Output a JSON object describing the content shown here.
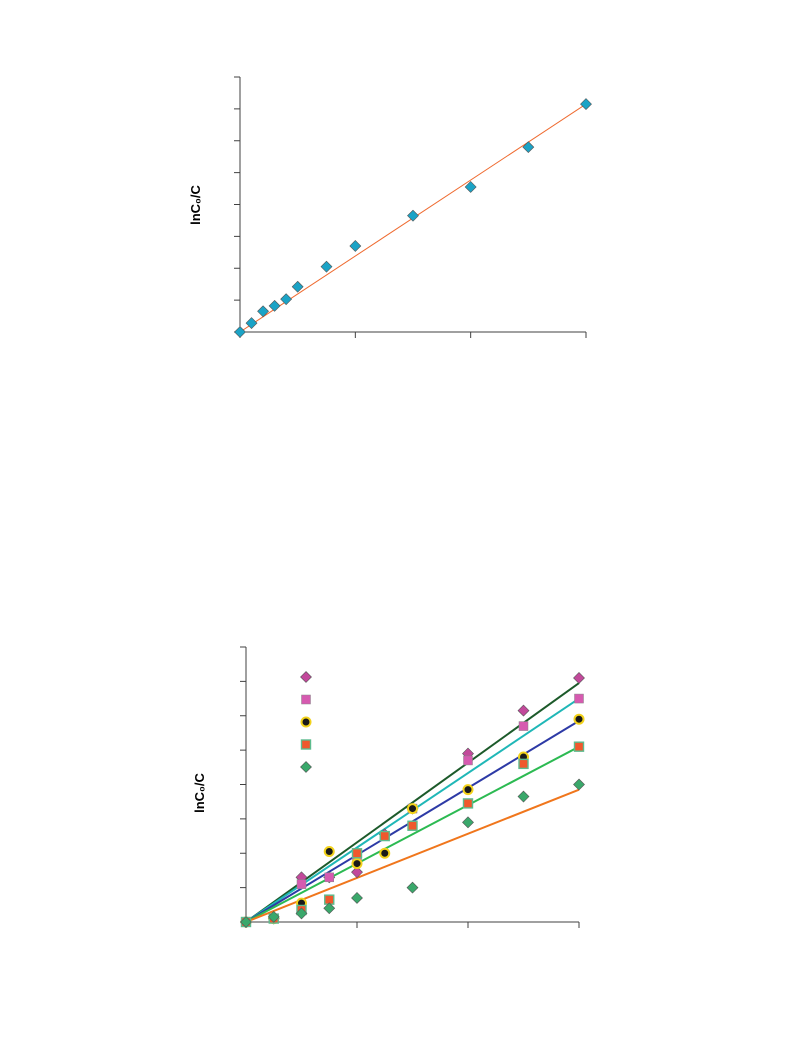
{
  "chart_data": [
    {
      "type": "scatter",
      "ylabel": "lnC₀/C",
      "xlim": [
        0,
        60
      ],
      "ylim": [
        0,
        8
      ],
      "x_ticks": [
        0,
        20,
        40,
        60
      ],
      "y_ticks": [
        0,
        1,
        2,
        3,
        4,
        5,
        6,
        7,
        8
      ],
      "series": [
        {
          "marker": "diamond",
          "color": "#1ba3c6",
          "points": [
            [
              0,
              0
            ],
            [
              2,
              0.28
            ],
            [
              4,
              0.65
            ],
            [
              6,
              0.82
            ],
            [
              8,
              1.03
            ],
            [
              10,
              1.42
            ],
            [
              15,
              2.05
            ],
            [
              20,
              2.7
            ],
            [
              30,
              3.65
            ],
            [
              40,
              4.55
            ],
            [
              50,
              5.8
            ],
            [
              60,
              7.15
            ]
          ]
        }
      ],
      "fit_lines": [
        {
          "color": "#ef6a2f",
          "from": [
            0,
            0
          ],
          "to": [
            60,
            7.15
          ]
        }
      ]
    },
    {
      "type": "scatter",
      "ylabel": "lnC₀/C",
      "xlim": [
        0,
        60
      ],
      "ylim": [
        0,
        8
      ],
      "x_ticks": [
        0,
        20,
        40,
        60
      ],
      "y_ticks": [
        0,
        1,
        2,
        3,
        4,
        5,
        6,
        7,
        8
      ],
      "legend_markers": [
        {
          "marker": "diamond",
          "color": "#c2499b"
        },
        {
          "marker": "square",
          "color": "#d65ab0"
        },
        {
          "marker": "circle",
          "color": "#1a1a1a",
          "stroke": "#f2d21b"
        },
        {
          "marker": "square",
          "color": "#f0582d",
          "stroke": "#5dbb8e"
        },
        {
          "marker": "diamond",
          "color": "#3aa86b"
        }
      ],
      "series": [
        {
          "marker": "diamond",
          "color": "#c2499b",
          "points": [
            [
              0,
              0
            ],
            [
              5,
              0.1
            ],
            [
              10,
              1.3
            ],
            [
              15,
              1.3
            ],
            [
              20,
              1.45
            ],
            [
              25,
              2.55
            ],
            [
              30,
              3.3
            ],
            [
              40,
              4.9
            ],
            [
              50,
              6.15
            ],
            [
              60,
              7.1
            ]
          ]
        },
        {
          "marker": "square",
          "color": "#d65ab0",
          "points": [
            [
              0,
              0
            ],
            [
              5,
              0.1
            ],
            [
              10,
              1.1
            ],
            [
              15,
              1.3
            ],
            [
              20,
              1.9
            ],
            [
              25,
              2.5
            ],
            [
              30,
              3.3
            ],
            [
              40,
              4.7
            ],
            [
              50,
              5.7
            ],
            [
              60,
              6.5
            ]
          ]
        },
        {
          "marker": "circle",
          "color": "#1a1a1a",
          "stroke": "#f2d21b",
          "points": [
            [
              0,
              0
            ],
            [
              5,
              0.1
            ],
            [
              10,
              0.55
            ],
            [
              15,
              2.05
            ],
            [
              20,
              1.7
            ],
            [
              25,
              2.0
            ],
            [
              30,
              3.3
            ],
            [
              40,
              3.85
            ],
            [
              50,
              4.8
            ],
            [
              60,
              5.9
            ]
          ]
        },
        {
          "marker": "square",
          "color": "#f0582d",
          "stroke": "#5dbb8e",
          "points": [
            [
              0,
              0
            ],
            [
              5,
              0.1
            ],
            [
              10,
              0.35
            ],
            [
              15,
              0.65
            ],
            [
              20,
              2.0
            ],
            [
              25,
              2.5
            ],
            [
              30,
              2.8
            ],
            [
              40,
              3.45
            ],
            [
              50,
              4.6
            ],
            [
              60,
              5.1
            ]
          ]
        },
        {
          "marker": "diamond",
          "color": "#3aa86b",
          "points": [
            [
              0,
              0
            ],
            [
              5,
              0.15
            ],
            [
              10,
              0.25
            ],
            [
              15,
              0.4
            ],
            [
              20,
              0.7
            ],
            [
              30,
              1.0
            ],
            [
              40,
              2.9
            ],
            [
              50,
              3.65
            ],
            [
              60,
              4.0
            ]
          ]
        }
      ],
      "fit_lines": [
        {
          "color": "#1c5a2a",
          "from": [
            0,
            0
          ],
          "to": [
            60,
            6.95
          ]
        },
        {
          "color": "#1fb7b7",
          "from": [
            0,
            0
          ],
          "to": [
            60,
            6.5
          ]
        },
        {
          "color": "#2d3aa6",
          "from": [
            0,
            0
          ],
          "to": [
            60,
            5.85
          ]
        },
        {
          "color": "#2cba52",
          "from": [
            0,
            0
          ],
          "to": [
            60,
            5.1
          ]
        },
        {
          "color": "#f0761c",
          "from": [
            0,
            0
          ],
          "to": [
            60,
            3.85
          ]
        }
      ]
    }
  ]
}
